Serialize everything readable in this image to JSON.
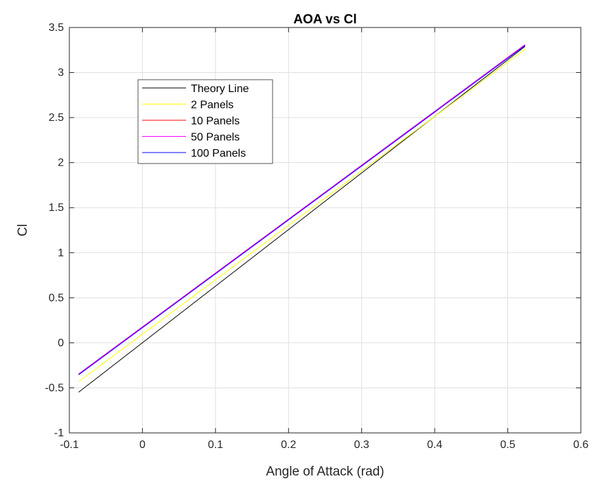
{
  "chart_data": {
    "type": "line",
    "title": "AOA vs Cl",
    "xlabel": "Angle of Attack (rad)",
    "ylabel": "Cl",
    "xlim": [
      -0.1,
      0.6
    ],
    "ylim": [
      -1,
      3.5
    ],
    "xticks": [
      -0.1,
      0,
      0.1,
      0.2,
      0.3,
      0.4,
      0.5,
      0.6
    ],
    "xtick_labels": [
      "-0.1",
      "0",
      "0.1",
      "0.2",
      "0.3",
      "0.4",
      "0.5",
      "0.6"
    ],
    "yticks": [
      -1,
      -0.5,
      0,
      0.5,
      1,
      1.5,
      2,
      2.5,
      3,
      3.5
    ],
    "ytick_labels": [
      "-1",
      "-0.5",
      "0",
      "0.5",
      "1",
      "1.5",
      "2",
      "2.5",
      "3",
      "3.5"
    ],
    "grid": true,
    "legend_position": "top-left",
    "series": [
      {
        "name": "Theory Line",
        "color": "#000000",
        "x": [
          -0.0873,
          0.5236
        ],
        "y": [
          -0.548,
          3.29
        ]
      },
      {
        "name": "2 Panels",
        "color": "#ffff00",
        "x": [
          -0.0873,
          0.5236
        ],
        "y": [
          -0.43,
          3.26
        ]
      },
      {
        "name": "10 Panels",
        "color": "#ff0000",
        "x": [
          -0.0873,
          0.5236
        ],
        "y": [
          -0.35,
          3.3
        ]
      },
      {
        "name": "50 Panels",
        "color": "#ff00ff",
        "x": [
          -0.0873,
          0.5236
        ],
        "y": [
          -0.345,
          3.31
        ]
      },
      {
        "name": "100 Panels",
        "color": "#0000ff",
        "x": [
          -0.0873,
          0.5236
        ],
        "y": [
          -0.355,
          3.3
        ]
      }
    ]
  }
}
